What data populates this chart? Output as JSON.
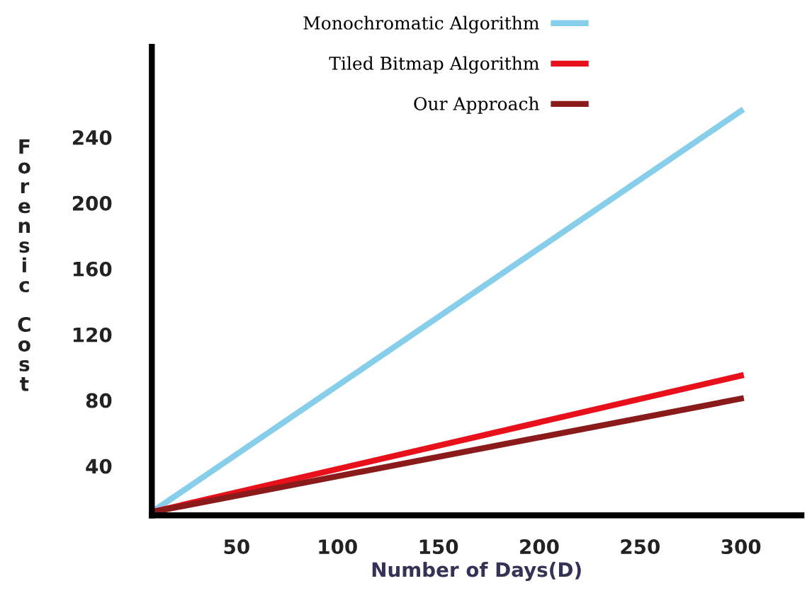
{
  "chart_data": {
    "type": "line",
    "xlabel": "Number of Days(D)",
    "ylabel": "Forensic Cost",
    "x": [
      8,
      300
    ],
    "series": [
      {
        "name": "Monochromatic Algorithm",
        "color": "#87ceeb",
        "values": [
          12,
          256
        ]
      },
      {
        "name": "Tiled Bitmap Algorithm",
        "color": "#e8101a",
        "values": [
          12,
          95
        ]
      },
      {
        "name": "Our Approach",
        "color": "#8b1a1a",
        "values": [
          12,
          81
        ]
      }
    ],
    "xlim": [
      8,
      330
    ],
    "ylim": [
      10,
      295
    ],
    "xticks": [
      50,
      100,
      150,
      200,
      250,
      300
    ],
    "yticks": [
      40,
      80,
      120,
      160,
      200,
      240
    ],
    "grid": false,
    "legend": "top",
    "marker": "none",
    "line_style": "solid"
  }
}
